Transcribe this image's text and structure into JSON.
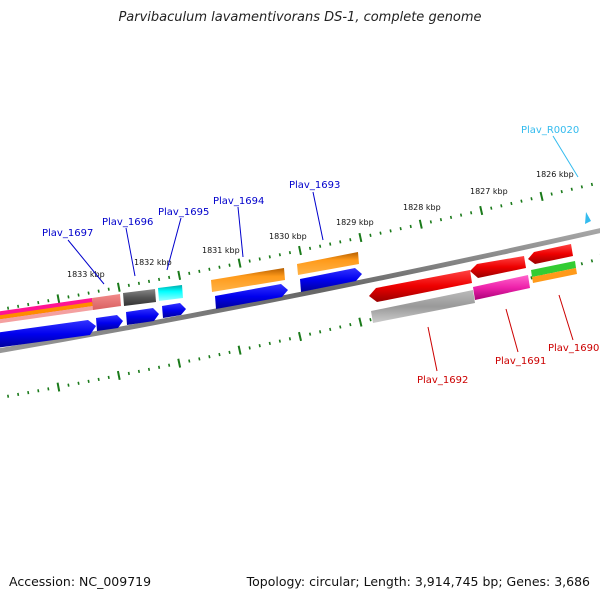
{
  "header": {
    "title": "Parvibaculum lavamentivorans DS-1, complete genome"
  },
  "footer": {
    "accession": "Accession: NC_009719",
    "summary": "Topology: circular; Length: 3,914,745 bp; Genes: 3,686"
  },
  "scale": {
    "ticks": [
      {
        "label": "1833 kbp"
      },
      {
        "label": "1832 kbp"
      },
      {
        "label": "1831 kbp"
      },
      {
        "label": "1830 kbp"
      },
      {
        "label": "1829 kbp"
      },
      {
        "label": "1828 kbp"
      },
      {
        "label": "1827 kbp"
      },
      {
        "label": "1826 kbp"
      }
    ]
  },
  "gene_labels": {
    "plav_1697": "Plav_1697",
    "plav_1696": "Plav_1696",
    "plav_1695": "Plav_1695",
    "plav_1694": "Plav_1694",
    "plav_1693": "Plav_1693",
    "plav_1692": "Plav_1692",
    "plav_1691": "Plav_1691",
    "plav_1690": "Plav_1690",
    "plav_r0020": "Plav_R0020"
  },
  "colors": {
    "forward_label": "#0000cc",
    "reverse_label": "#cc0000",
    "rna_label": "#33bbee",
    "tick": "#1a7a1a",
    "backbone": "#808080"
  }
}
